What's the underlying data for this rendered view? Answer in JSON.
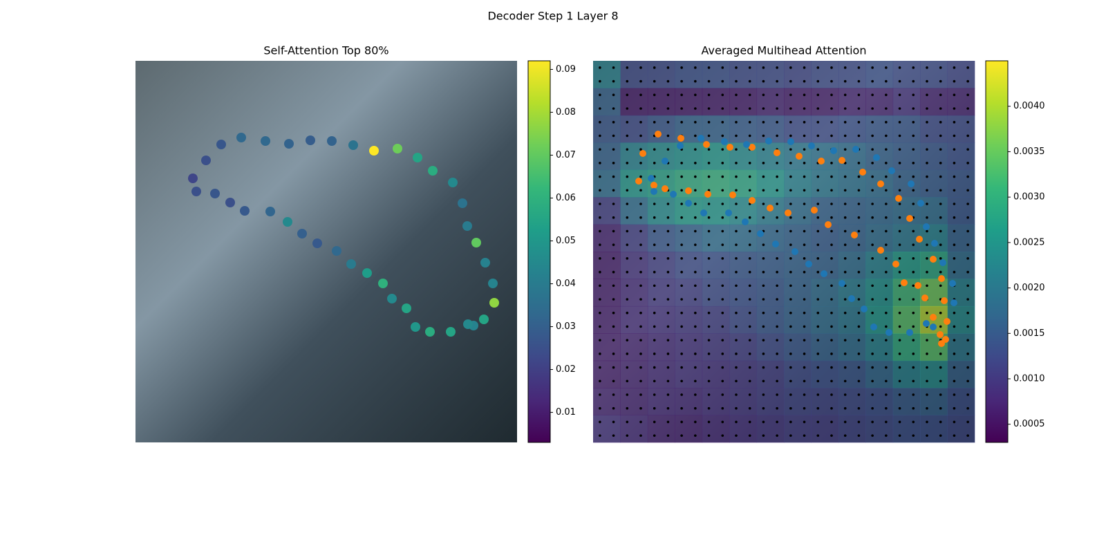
{
  "figure_title": "Decoder Step 1 Layer 8",
  "chart_data": [
    {
      "type": "scatter",
      "title": "Self-Attention Top 80%",
      "colormap": "viridis",
      "xlim": [
        0,
        552
      ],
      "ylim": [
        552,
        0
      ],
      "x": [
        83,
        102,
        124,
        153,
        188,
        222,
        253,
        284,
        315,
        345,
        379,
        408,
        430,
        459,
        473,
        480,
        493,
        506,
        517,
        519,
        504,
        489,
        481,
        456,
        426,
        405,
        392,
        371,
        358,
        335,
        312,
        291,
        263,
        241,
        220,
        195,
        158,
        137,
        115,
        88
      ],
      "y": [
        170,
        144,
        121,
        111,
        116,
        120,
        115,
        116,
        122,
        130,
        127,
        140,
        159,
        176,
        206,
        239,
        263,
        292,
        322,
        350,
        374,
        383,
        381,
        392,
        392,
        385,
        358,
        344,
        322,
        307,
        294,
        275,
        264,
        250,
        233,
        218,
        217,
        205,
        192,
        189
      ],
      "values": [
        0.022,
        0.025,
        0.027,
        0.033,
        0.033,
        0.031,
        0.029,
        0.031,
        0.037,
        0.092,
        0.072,
        0.055,
        0.058,
        0.045,
        0.037,
        0.04,
        0.07,
        0.042,
        0.043,
        0.077,
        0.055,
        0.043,
        0.045,
        0.055,
        0.058,
        0.05,
        0.055,
        0.045,
        0.06,
        0.052,
        0.04,
        0.033,
        0.028,
        0.03,
        0.045,
        0.032,
        0.028,
        0.025,
        0.027,
        0.025
      ],
      "clim": [
        0.003,
        0.092
      ],
      "cticks": [
        0.01,
        0.02,
        0.03,
        0.04,
        0.05,
        0.06,
        0.07,
        0.08,
        0.09
      ]
    },
    {
      "type": "heatmap",
      "title": "Averaged Multihead Attention",
      "colormap": "viridis",
      "xlim": [
        0,
        552
      ],
      "ylim": [
        552,
        0
      ],
      "z": [
        [
          0.0022,
          0.0012,
          0.0012,
          0.0013,
          0.0013,
          0.0012,
          0.0012,
          0.0011,
          0.0012,
          0.0012,
          0.0013,
          0.0012,
          0.0012,
          0.0011
        ],
        [
          0.0016,
          0.0005,
          0.0005,
          0.0005,
          0.0005,
          0.0005,
          0.0006,
          0.0005,
          0.0005,
          0.0006,
          0.0006,
          0.0008,
          0.0006,
          0.0006
        ],
        [
          0.0014,
          0.0012,
          0.0014,
          0.0016,
          0.0016,
          0.0015,
          0.0014,
          0.0012,
          0.0012,
          0.0013,
          0.0014,
          0.0014,
          0.0012,
          0.0012
        ],
        [
          0.0016,
          0.0022,
          0.0024,
          0.0025,
          0.0026,
          0.0024,
          0.0022,
          0.002,
          0.0019,
          0.0018,
          0.0016,
          0.0015,
          0.0014,
          0.0013
        ],
        [
          0.0018,
          0.0026,
          0.0028,
          0.003,
          0.0031,
          0.0029,
          0.0026,
          0.0022,
          0.002,
          0.0019,
          0.0018,
          0.0016,
          0.0015,
          0.0014
        ],
        [
          0.001,
          0.0018,
          0.0024,
          0.0027,
          0.0026,
          0.0024,
          0.0021,
          0.0018,
          0.0016,
          0.0016,
          0.0017,
          0.0018,
          0.0018,
          0.0014
        ],
        [
          0.0006,
          0.001,
          0.0014,
          0.0016,
          0.0018,
          0.0018,
          0.0017,
          0.0016,
          0.0015,
          0.0016,
          0.0018,
          0.002,
          0.0022,
          0.0016
        ],
        [
          0.0005,
          0.0008,
          0.001,
          0.0012,
          0.0013,
          0.0014,
          0.0015,
          0.0016,
          0.0016,
          0.0018,
          0.0022,
          0.0027,
          0.0029,
          0.0018
        ],
        [
          0.0005,
          0.0007,
          0.0009,
          0.001,
          0.0012,
          0.0013,
          0.0014,
          0.0016,
          0.0018,
          0.0021,
          0.0025,
          0.0032,
          0.0036,
          0.0022
        ],
        [
          0.0005,
          0.0007,
          0.0008,
          0.0009,
          0.001,
          0.0012,
          0.0014,
          0.0016,
          0.0018,
          0.002,
          0.0026,
          0.0034,
          0.0041,
          0.0024
        ],
        [
          0.0005,
          0.0006,
          0.0007,
          0.0008,
          0.0009,
          0.001,
          0.0012,
          0.0014,
          0.0016,
          0.0018,
          0.0022,
          0.003,
          0.0034,
          0.002
        ],
        [
          0.0005,
          0.0006,
          0.0007,
          0.0008,
          0.0008,
          0.0009,
          0.001,
          0.0012,
          0.0013,
          0.0014,
          0.0017,
          0.0022,
          0.0024,
          0.0016
        ],
        [
          0.0006,
          0.0006,
          0.0007,
          0.0007,
          0.0008,
          0.0009,
          0.001,
          0.0011,
          0.0011,
          0.0012,
          0.0013,
          0.0015,
          0.0016,
          0.0013
        ],
        [
          0.0008,
          0.0007,
          0.0006,
          0.0006,
          0.0007,
          0.0008,
          0.0009,
          0.001,
          0.001,
          0.0011,
          0.0012,
          0.0013,
          0.0013,
          0.0012
        ]
      ],
      "clim": [
        0.0003,
        0.0045
      ],
      "cticks": [
        0.0005,
        {
          "value": 0.001,
          "label": "0.0010"
        },
        0.0015,
        {
          "value": 0.002,
          "label": "0.0020"
        },
        0.0025,
        {
          "value": 0.003,
          "label": "0.0030"
        },
        0.0035,
        {
          "value": 0.004,
          "label": "0.0040"
        }
      ],
      "series": [
        {
          "color": "#ff7f0e",
          "x": [
            66,
            72,
            88,
            94,
            104,
            127,
            138,
            164,
            166,
            198,
            202,
            230,
            230,
            256,
            266,
            282,
            298,
            320,
            330,
            340,
            360,
            378,
            390,
            416,
            416,
            438,
            442,
            450,
            458,
            470,
            472,
            480,
            492,
            492,
            504,
            508,
            512,
            502,
            510,
            504
          ],
          "y": [
            174,
            134,
            180,
            106,
            185,
            112,
            188,
            121,
            193,
            125,
            194,
            125,
            202,
            213,
            133,
            220,
            138,
            216,
            145,
            237,
            144,
            252,
            161,
            178,
            274,
            294,
            199,
            321,
            228,
            325,
            258,
            343,
            287,
            371,
            315,
            347,
            377,
            396,
            403,
            409
          ]
        },
        {
          "color": "#1f77b4",
          "x": [
            84,
            88,
            104,
            116,
            126,
            138,
            156,
            160,
            190,
            196,
            222,
            220,
            242,
            254,
            264,
            286,
            292,
            316,
            312,
            334,
            348,
            360,
            380,
            374,
            410,
            392,
            432,
            406,
            460,
            428,
            474,
            458,
            482,
            482,
            494,
            492,
            506,
            520,
            522
          ],
          "y": [
            170,
            189,
            145,
            193,
            123,
            206,
            112,
            220,
            117,
            220,
            121,
            233,
            250,
            116,
            265,
            117,
            276,
            123,
            294,
            308,
            130,
            322,
            128,
            344,
            140,
            359,
            159,
            385,
            178,
            393,
            206,
            393,
            240,
            380,
            264,
            385,
            292,
            322,
            350
          ]
        }
      ]
    }
  ]
}
